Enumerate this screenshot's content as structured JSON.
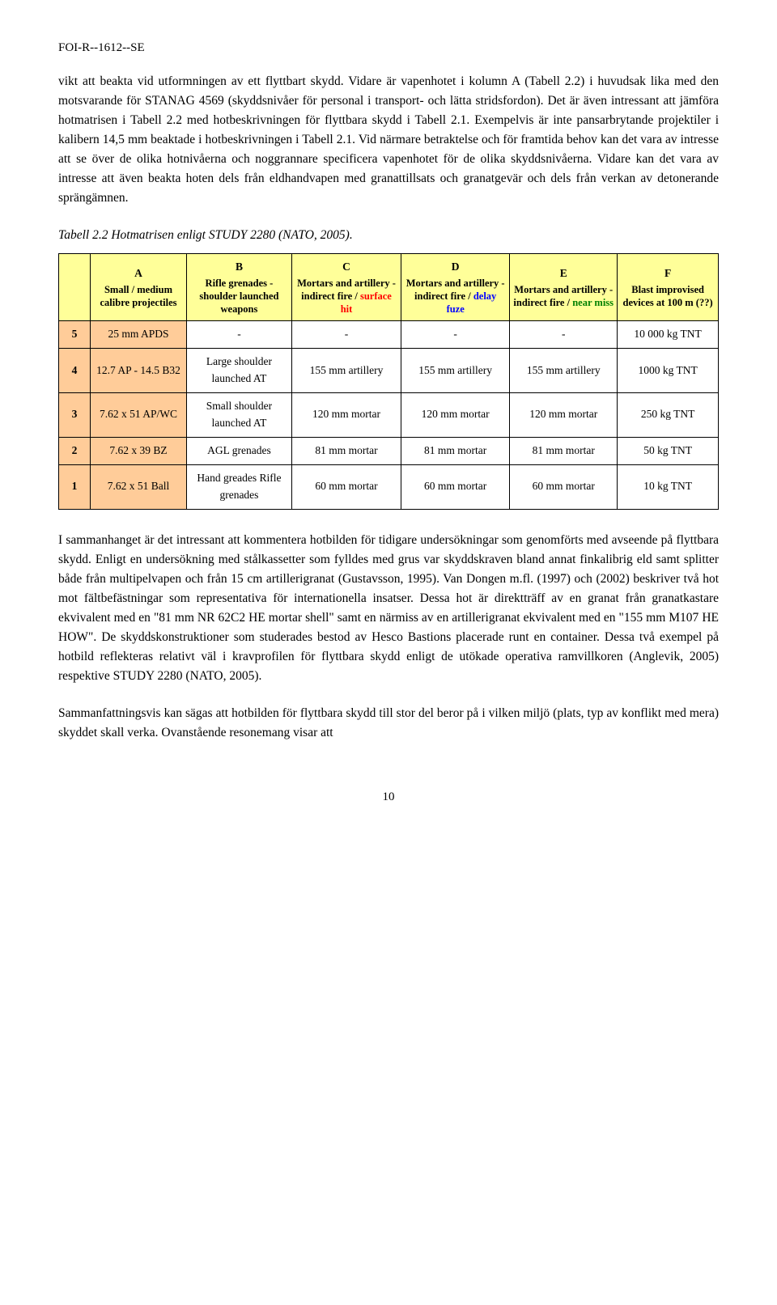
{
  "header": {
    "doc_id": "FOI-R--1612--SE"
  },
  "paragraphs": {
    "p1": "vikt att beakta vid utformningen av ett flyttbart skydd. Vidare är vapenhotet i kolumn A (Tabell 2.2) i huvudsak lika med den motsvarande för STANAG 4569 (skyddsnivåer för personal i transport- och lätta stridsfordon). Det är även intressant att jämföra hotmatrisen i Tabell 2.2 med hotbeskrivningen för flyttbara skydd i Tabell 2.1. Exempelvis är inte pansarbrytande projektiler i kalibern 14,5 mm beaktade i hotbeskrivningen i Tabell 2.1. Vid närmare betraktelse och för framtida behov kan det vara av intresse att se över de olika hotnivåerna och noggrannare specificera vapenhotet för de olika skyddsnivåerna. Vidare kan det vara av intresse att även beakta hoten dels från eldhandvapen med granattillsats och granatgevär och dels från verkan av detonerande sprängämnen.",
    "p2": "I sammanhanget är det intressant att kommentera hotbilden för tidigare undersökningar som genomförts med avseende på flyttbara skydd. Enligt en undersökning med stålkassetter som fylldes med grus var skyddskraven bland annat finkalibrig eld samt splitter både från multipelvapen och från 15 cm artillerigranat (Gustavsson, 1995). Van Dongen m.fl. (1997) och (2002) beskriver två hot mot fältbefästningar som representativa för internationella insatser. Dessa hot är direktträff av en granat från granatkastare ekvivalent med en \"81 mm NR 62C2 HE mortar shell\" samt en närmiss av en artillerigranat ekvivalent med en \"155 mm M107 HE HOW\". De skyddskonstruktioner som studerades bestod av Hesco Bastions placerade runt en container. Dessa två exempel på hotbild reflekteras relativt väl i kravprofilen för flyttbara skydd enligt de utökade operativa ramvillkoren (Anglevik, 2005) respektive STUDY 2280 (NATO, 2005).",
    "p3": "Sammanfattningsvis kan sägas att hotbilden för flyttbara skydd till stor del beror på i vilken miljö (plats, typ av konflikt med mera) skyddet skall verka. Ovanstående resonemang visar att"
  },
  "caption": "Tabell 2.2 Hotmatrisen enligt STUDY 2280 (NATO, 2005).",
  "table": {
    "header_bg": "#ffff99",
    "colA_bg": "#ffcc99",
    "rownum_bg": "#ffcc99",
    "text_color": "#000000",
    "c_color": "#ff0000",
    "d_color": "#0000ff",
    "e_color": "#008000",
    "columns": {
      "A": {
        "letter": "A",
        "sub": "Small / medium calibre projectiles"
      },
      "B": {
        "letter": "B",
        "sub": "Rifle grenades - shoulder launched weapons"
      },
      "C": {
        "letter": "C",
        "sub": "Mortars and artillery - indirect fire / surface hit"
      },
      "C_sub_pre": "Mortars and artillery - indirect fire / ",
      "C_sub_hl": "surface hit",
      "D": {
        "letter": "D",
        "sub": "Mortars and artillery - indirect fire / delay fuze"
      },
      "D_sub_pre": "Mortars and artillery - indirect fire / ",
      "D_sub_hl": "delay fuze",
      "E": {
        "letter": "E",
        "sub": "Mortars and artillery - indirect fire / near miss"
      },
      "E_sub_pre": "Mortars and artillery - indirect fire / ",
      "E_sub_hl": "near miss",
      "F": {
        "letter": "F",
        "sub": "Blast improvised devices at 100 m (??)"
      }
    },
    "rows": [
      {
        "n": "5",
        "A": "25 mm APDS",
        "B": "-",
        "C": "-",
        "D": "-",
        "E": "-",
        "F": "10 000 kg TNT"
      },
      {
        "n": "4",
        "A": "12.7 AP - 14.5 B32",
        "B": "Large shoulder launched AT",
        "C": "155 mm artillery",
        "D": "155 mm artillery",
        "E": "155 mm artillery",
        "F": "1000 kg TNT"
      },
      {
        "n": "3",
        "A": "7.62 x 51 AP/WC",
        "B": "Small shoulder launched AT",
        "C": "120 mm mortar",
        "D": "120 mm mortar",
        "E": "120 mm mortar",
        "F": "250 kg TNT"
      },
      {
        "n": "2",
        "A": "7.62 x 39 BZ",
        "B": "AGL grenades",
        "C": "81 mm mortar",
        "D": "81 mm mortar",
        "E": "81 mm mortar",
        "F": "50 kg TNT"
      },
      {
        "n": "1",
        "A": "7.62 x 51 Ball",
        "B": "Hand  greades Rifle grenades",
        "C": "60 mm mortar",
        "D": "60 mm mortar",
        "E": "60 mm mortar",
        "F": "10 kg TNT"
      }
    ]
  },
  "page_number": "10"
}
